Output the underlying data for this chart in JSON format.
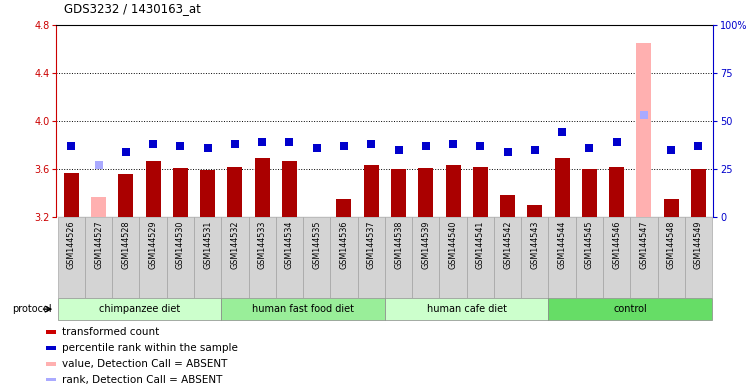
{
  "title": "GDS3232 / 1430163_at",
  "samples": [
    "GSM144526",
    "GSM144527",
    "GSM144528",
    "GSM144529",
    "GSM144530",
    "GSM144531",
    "GSM144532",
    "GSM144533",
    "GSM144534",
    "GSM144535",
    "GSM144536",
    "GSM144537",
    "GSM144538",
    "GSM144539",
    "GSM144540",
    "GSM144541",
    "GSM144542",
    "GSM144543",
    "GSM144544",
    "GSM144545",
    "GSM144546",
    "GSM144547",
    "GSM144548",
    "GSM144549"
  ],
  "bar_values": [
    3.57,
    3.37,
    3.56,
    3.67,
    3.61,
    3.59,
    3.62,
    3.69,
    3.67,
    3.18,
    3.35,
    3.63,
    3.6,
    3.61,
    3.63,
    3.62,
    3.38,
    3.3,
    3.69,
    3.6,
    3.62,
    4.65,
    3.35,
    3.6
  ],
  "bar_colors": [
    "#aa0000",
    "#ffb0b0",
    "#aa0000",
    "#aa0000",
    "#aa0000",
    "#aa0000",
    "#aa0000",
    "#aa0000",
    "#aa0000",
    "#aa0000",
    "#aa0000",
    "#aa0000",
    "#aa0000",
    "#aa0000",
    "#aa0000",
    "#aa0000",
    "#aa0000",
    "#aa0000",
    "#aa0000",
    "#aa0000",
    "#aa0000",
    "#ffb0b0",
    "#aa0000",
    "#aa0000"
  ],
  "dot_values": [
    37,
    27,
    34,
    38,
    37,
    36,
    38,
    39,
    39,
    36,
    37,
    38,
    35,
    37,
    38,
    37,
    34,
    35,
    44,
    36,
    39,
    53,
    35,
    37
  ],
  "dot_colors": [
    "#0000cc",
    "#aaaaff",
    "#0000cc",
    "#0000cc",
    "#0000cc",
    "#0000cc",
    "#0000cc",
    "#0000cc",
    "#0000cc",
    "#0000cc",
    "#0000cc",
    "#0000cc",
    "#0000cc",
    "#0000cc",
    "#0000cc",
    "#0000cc",
    "#0000cc",
    "#0000cc",
    "#0000cc",
    "#0000cc",
    "#0000cc",
    "#aaaaff",
    "#0000cc",
    "#0000cc"
  ],
  "ylim_left": [
    3.2,
    4.8
  ],
  "ylim_right": [
    0,
    100
  ],
  "yticks_left": [
    3.2,
    3.6,
    4.0,
    4.4,
    4.8
  ],
  "yticks_right": [
    0,
    25,
    50,
    75,
    100
  ],
  "ytick_labels_right": [
    "0",
    "25",
    "50",
    "75",
    "100%"
  ],
  "hlines": [
    3.6,
    4.0,
    4.4
  ],
  "groups": [
    {
      "label": "chimpanzee diet",
      "start": 0,
      "end": 6,
      "color": "#ccffcc"
    },
    {
      "label": "human fast food diet",
      "start": 6,
      "end": 12,
      "color": "#99ee99"
    },
    {
      "label": "human cafe diet",
      "start": 12,
      "end": 18,
      "color": "#ccffcc"
    },
    {
      "label": "control",
      "start": 18,
      "end": 24,
      "color": "#66dd66"
    }
  ],
  "legend_items": [
    {
      "color": "#cc0000",
      "label": "transformed count"
    },
    {
      "color": "#0000cc",
      "label": "percentile rank within the sample"
    },
    {
      "color": "#ffb0b0",
      "label": "value, Detection Call = ABSENT"
    },
    {
      "color": "#aaaaff",
      "label": "rank, Detection Call = ABSENT"
    }
  ],
  "left_axis_color": "#cc0000",
  "right_axis_color": "#0000cc",
  "bar_width": 0.55,
  "dot_size": 28,
  "background_color": "#ffffff"
}
